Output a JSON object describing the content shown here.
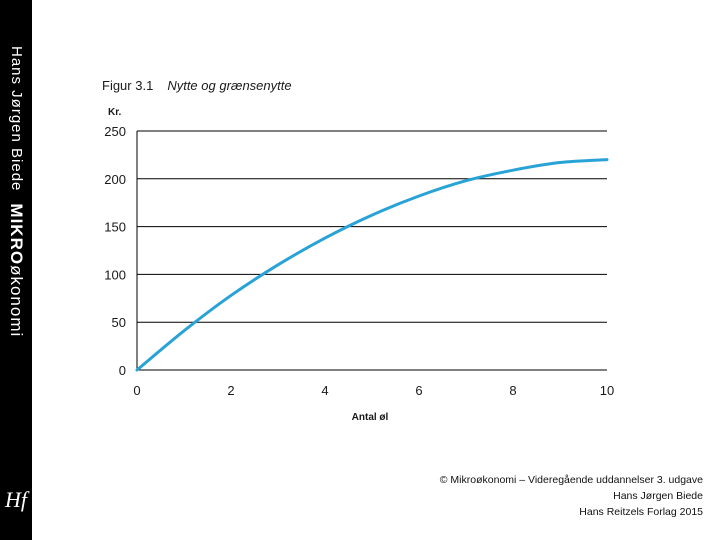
{
  "sidebar": {
    "author": "Hans Jørgen Biede",
    "brand_bold": "MIKRO",
    "brand_rest": "økonomi",
    "logo": "Hf"
  },
  "figure": {
    "number": "Figur 3.1",
    "title": "Nytte og grænsenytte"
  },
  "chart_data": {
    "type": "line",
    "ylabel": "Kr.",
    "xlabel": "Antal øl",
    "xlim": [
      0,
      10
    ],
    "ylim": [
      0,
      250
    ],
    "x_ticks": [
      0,
      2,
      4,
      6,
      8,
      10
    ],
    "y_ticks": [
      0,
      50,
      100,
      150,
      200,
      250
    ],
    "grid": "horizontal",
    "series": [
      {
        "color": "#29a3d6",
        "x": [
          0,
          1,
          2,
          3,
          4,
          5,
          6,
          7,
          8,
          9,
          10
        ],
        "y": [
          0,
          41,
          78,
          110,
          138,
          162,
          182,
          198,
          209,
          217,
          220
        ]
      }
    ]
  },
  "footer": {
    "line1": "© Mikroøkonomi – Videregående uddannelser 3. udgave",
    "line2": "Hans Jørgen Biede",
    "line3": "Hans Reitzels Forlag 2015"
  }
}
